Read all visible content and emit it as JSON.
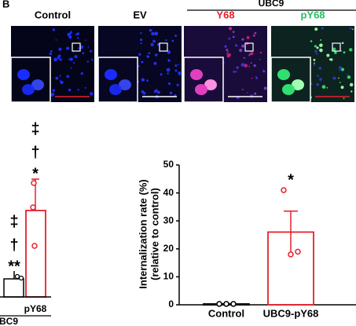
{
  "panel_label": "B",
  "images": {
    "group": "UBC9",
    "labels": [
      "Control",
      "EV",
      "Y68",
      "pY68"
    ]
  },
  "fragment": {
    "category": "pY68",
    "group": "BC9",
    "annotations_red": [
      "‡",
      "†",
      "*"
    ],
    "annotations_black": [
      "‡",
      "†",
      "**"
    ]
  },
  "chart_data": [
    {
      "type": "bar",
      "ylabel": [
        "Internalization rate (%)",
        "(relative to control)"
      ],
      "categories": [
        "Control",
        "UBC9-pY68"
      ],
      "values": [
        0.3,
        26
      ],
      "errors": [
        0.1,
        7.5
      ],
      "points": [
        [
          0.3,
          0.3,
          0.3
        ],
        [
          41,
          18,
          19
        ]
      ],
      "colors": [
        "#000000",
        "#e8202a"
      ],
      "annotations": [
        null,
        "*"
      ],
      "ylim": [
        0,
        50
      ],
      "yticks": [
        0,
        10,
        20,
        30,
        40,
        50
      ]
    }
  ]
}
